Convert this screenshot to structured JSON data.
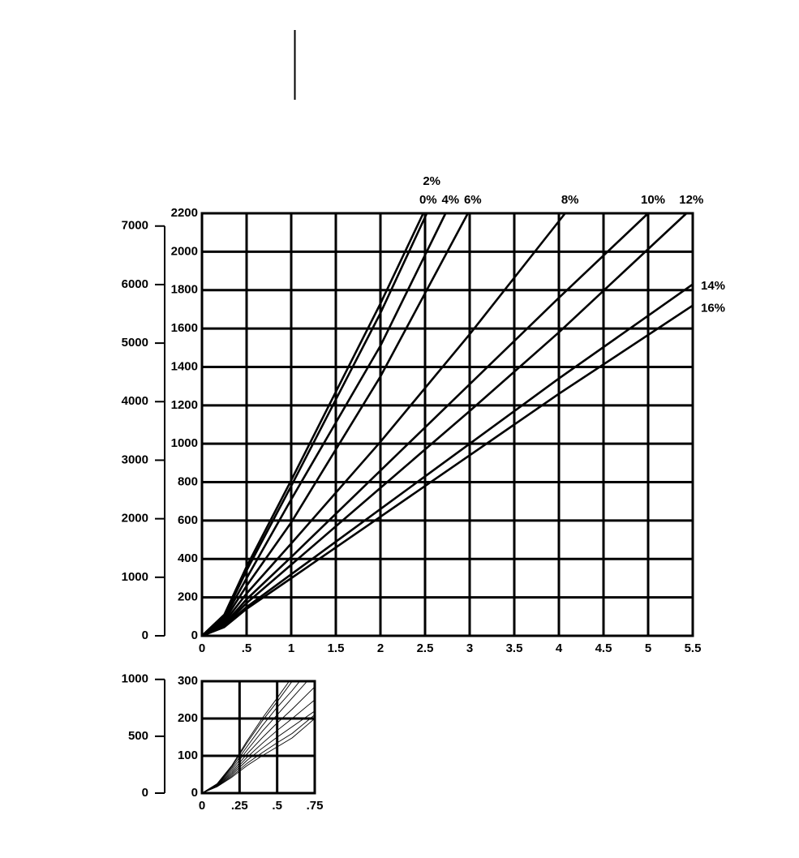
{
  "chart_data": [
    {
      "type": "line",
      "xlim": [
        0,
        5.5
      ],
      "xticks": [
        0,
        {
          "value": 0.5,
          "label": ".5"
        },
        1,
        1.5,
        2,
        2.5,
        3,
        3.5,
        4,
        4.5,
        5,
        5.5
      ],
      "ylim": [
        0,
        2200
      ],
      "yticks": [
        0,
        200,
        400,
        600,
        800,
        1000,
        1200,
        1400,
        1600,
        1800,
        2000,
        2200
      ],
      "y2lim": [
        0,
        7218
      ],
      "y2ticks": [
        0,
        1000,
        2000,
        3000,
        4000,
        5000,
        6000,
        7000
      ],
      "grid": true,
      "color": "#000000",
      "series": [
        {
          "name": "0%",
          "x": [
            0,
            0.25,
            0.5,
            1,
            1.5,
            2,
            2.48
          ],
          "values": [
            0,
            110,
            360,
            810,
            1270,
            1730,
            2200
          ]
        },
        {
          "name": "2%",
          "x": [
            0,
            0.25,
            0.5,
            1,
            1.5,
            2,
            2.52
          ],
          "values": [
            0,
            100,
            340,
            780,
            1230,
            1680,
            2200
          ]
        },
        {
          "name": "4%",
          "x": [
            0,
            0.25,
            0.5,
            1,
            1.5,
            2,
            2.73
          ],
          "values": [
            0,
            90,
            300,
            710,
            1110,
            1510,
            2200
          ]
        },
        {
          "name": "6%",
          "x": [
            0,
            0.25,
            0.5,
            1,
            2,
            2.98
          ],
          "values": [
            0,
            80,
            260,
            590,
            1350,
            2200
          ]
        },
        {
          "name": "8%",
          "x": [
            0,
            0.25,
            0.5,
            1,
            2,
            3,
            4.07
          ],
          "values": [
            0,
            70,
            220,
            480,
            1010,
            1570,
            2200
          ]
        },
        {
          "name": "10%",
          "x": [
            0,
            0.25,
            0.5,
            1,
            2,
            3,
            4,
            5
          ],
          "values": [
            0,
            60,
            190,
            410,
            860,
            1310,
            1760,
            2200
          ]
        },
        {
          "name": "12%",
          "x": [
            0,
            0.25,
            0.5,
            1,
            2,
            3,
            4,
            5.43
          ],
          "values": [
            0,
            55,
            170,
            370,
            770,
            1170,
            1580,
            2200
          ]
        },
        {
          "name": "14%",
          "x": [
            0,
            0.25,
            0.5,
            1,
            2,
            3,
            4,
            5.5
          ],
          "values": [
            0,
            50,
            150,
            320,
            660,
            1000,
            1340,
            1830
          ]
        },
        {
          "name": "16%",
          "x": [
            0,
            0.25,
            0.5,
            1,
            2,
            3,
            4,
            5.5
          ],
          "values": [
            0,
            45,
            140,
            300,
            620,
            940,
            1260,
            1720
          ]
        }
      ]
    },
    {
      "type": "line",
      "xlim": [
        0,
        0.75
      ],
      "xticks": [
        0,
        {
          "value": 0.25,
          "label": ".25"
        },
        {
          "value": 0.5,
          "label": ".5"
        },
        {
          "value": 0.75,
          "label": ".75"
        }
      ],
      "ylim": [
        0,
        300
      ],
      "yticks": [
        0,
        100,
        200,
        300
      ],
      "y2lim": [
        0,
        984
      ],
      "y2ticks": [
        0,
        500,
        1000
      ],
      "grid": true,
      "color": "#000000",
      "series": [
        {
          "x": [
            0,
            0.1,
            0.2,
            0.3,
            0.4,
            0.5,
            0.58
          ],
          "values": [
            0,
            25,
            75,
            140,
            200,
            255,
            300
          ]
        },
        {
          "x": [
            0,
            0.1,
            0.2,
            0.3,
            0.4,
            0.5,
            0.6
          ],
          "values": [
            0,
            24,
            72,
            135,
            193,
            245,
            300
          ]
        },
        {
          "x": [
            0,
            0.1,
            0.2,
            0.3,
            0.4,
            0.5,
            0.6,
            0.65
          ],
          "values": [
            0,
            23,
            68,
            125,
            180,
            230,
            275,
            300
          ]
        },
        {
          "x": [
            0,
            0.1,
            0.2,
            0.3,
            0.4,
            0.5,
            0.6,
            0.7
          ],
          "values": [
            0,
            22,
            63,
            115,
            165,
            210,
            255,
            300
          ]
        },
        {
          "x": [
            0,
            0.1,
            0.2,
            0.3,
            0.4,
            0.5,
            0.6,
            0.75
          ],
          "values": [
            0,
            21,
            58,
            105,
            148,
            188,
            225,
            285
          ]
        },
        {
          "x": [
            0,
            0.1,
            0.2,
            0.3,
            0.4,
            0.5,
            0.6,
            0.75
          ],
          "values": [
            0,
            20,
            54,
            96,
            133,
            168,
            200,
            250
          ]
        },
        {
          "x": [
            0,
            0.1,
            0.2,
            0.3,
            0.4,
            0.5,
            0.6,
            0.75
          ],
          "values": [
            0,
            19,
            50,
            88,
            120,
            150,
            178,
            220
          ]
        },
        {
          "x": [
            0,
            0.1,
            0.2,
            0.3,
            0.4,
            0.5,
            0.6,
            0.75
          ],
          "values": [
            0,
            18,
            46,
            80,
            108,
            135,
            160,
            210
          ]
        },
        {
          "x": [
            0,
            0.1,
            0.2,
            0.3,
            0.4,
            0.5,
            0.6,
            0.75
          ],
          "values": [
            0,
            17,
            43,
            74,
            100,
            124,
            148,
            200
          ]
        }
      ]
    }
  ]
}
